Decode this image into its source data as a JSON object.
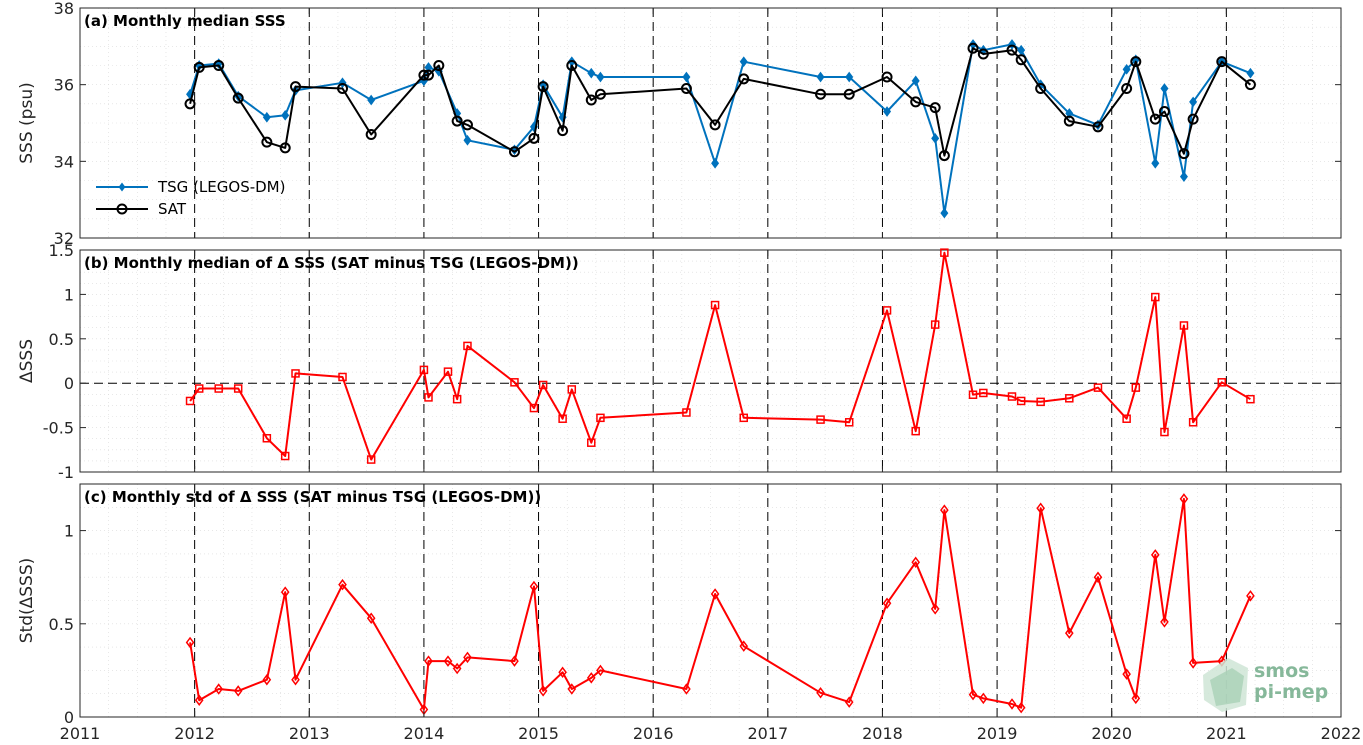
{
  "chart_data": [
    {
      "type": "line",
      "title": "(a) Monthly median SSS",
      "ylabel": "SSS (psu)",
      "xlim": [
        2011,
        2022
      ],
      "ylim": [
        32,
        38
      ],
      "yticks": [
        "32",
        "34",
        "36",
        "38"
      ],
      "grid": true,
      "legend": "left",
      "series": [
        {
          "name": "TSG (LEGOS-DM)",
          "color": "#0072bd",
          "marker": "diamond",
          "x": [
            2011.96,
            2012.04,
            2012.21,
            2012.38,
            2012.63,
            2012.79,
            2012.88,
            2013.29,
            2013.54,
            2014.0,
            2014.04,
            2014.13,
            2014.29,
            2014.38,
            2014.79,
            2014.96,
            2015.04,
            2015.21,
            2015.29,
            2015.46,
            2015.54,
            2016.29,
            2016.54,
            2016.79,
            2017.46,
            2017.71,
            2018.04,
            2018.29,
            2018.46,
            2018.54,
            2018.79,
            2018.88,
            2019.13,
            2019.21,
            2019.38,
            2019.63,
            2019.88,
            2020.13,
            2020.21,
            2020.38,
            2020.46,
            2020.63,
            2020.71,
            2020.96,
            2021.21
          ],
          "values": [
            35.75,
            36.5,
            36.55,
            35.7,
            35.15,
            35.2,
            35.85,
            36.05,
            35.6,
            36.1,
            36.45,
            36.35,
            35.25,
            34.55,
            34.3,
            34.9,
            36.0,
            35.15,
            36.6,
            36.3,
            36.2,
            36.2,
            33.95,
            36.6,
            36.2,
            36.2,
            35.3,
            36.1,
            34.6,
            32.65,
            37.05,
            36.9,
            37.05,
            36.9,
            36.0,
            35.25,
            34.95,
            36.4,
            36.65,
            33.95,
            35.9,
            33.6,
            35.55,
            36.6,
            36.3
          ]
        },
        {
          "name": "SAT",
          "color": "#000000",
          "marker": "circle",
          "x": [
            2011.96,
            2012.04,
            2012.21,
            2012.38,
            2012.63,
            2012.79,
            2012.88,
            2013.29,
            2013.54,
            2014.0,
            2014.04,
            2014.13,
            2014.29,
            2014.38,
            2014.79,
            2014.96,
            2015.04,
            2015.21,
            2015.29,
            2015.46,
            2015.54,
            2016.29,
            2016.54,
            2016.79,
            2017.46,
            2017.71,
            2018.04,
            2018.29,
            2018.46,
            2018.54,
            2018.79,
            2018.88,
            2019.13,
            2019.21,
            2019.38,
            2019.63,
            2019.88,
            2020.13,
            2020.21,
            2020.38,
            2020.46,
            2020.63,
            2020.71,
            2020.96,
            2021.21
          ],
          "values": [
            35.5,
            36.45,
            36.5,
            35.65,
            34.5,
            34.35,
            35.95,
            35.9,
            34.7,
            36.25,
            36.25,
            36.5,
            35.05,
            34.95,
            34.25,
            34.6,
            35.95,
            34.8,
            36.5,
            35.6,
            35.75,
            35.9,
            34.95,
            36.15,
            35.75,
            35.75,
            36.2,
            35.55,
            35.4,
            34.15,
            36.95,
            36.8,
            36.9,
            36.65,
            35.9,
            35.05,
            34.9,
            35.9,
            36.6,
            35.1,
            35.3,
            34.2,
            35.1,
            36.6,
            36.0
          ]
        }
      ]
    },
    {
      "type": "line",
      "title": "(b) Monthly median of Δ SSS (SAT minus TSG (LEGOS-DM))",
      "ylabel": "ΔSSS",
      "xlim": [
        2011,
        2022
      ],
      "ylim": [
        -1,
        1.5
      ],
      "yticks": [
        "-1",
        "-0.5",
        "0",
        "0.5",
        "1",
        "1.5"
      ],
      "grid": true,
      "series": [
        {
          "color": "#ff0000",
          "marker": "square",
          "x": [
            2011.96,
            2012.04,
            2012.21,
            2012.38,
            2012.63,
            2012.79,
            2012.88,
            2013.29,
            2013.54,
            2014.0,
            2014.04,
            2014.21,
            2014.29,
            2014.38,
            2014.79,
            2014.96,
            2015.04,
            2015.21,
            2015.29,
            2015.46,
            2015.54,
            2016.29,
            2016.54,
            2016.79,
            2017.46,
            2017.71,
            2018.04,
            2018.29,
            2018.46,
            2018.54,
            2018.79,
            2018.88,
            2019.13,
            2019.21,
            2019.38,
            2019.63,
            2019.88,
            2020.13,
            2020.21,
            2020.38,
            2020.46,
            2020.63,
            2020.71,
            2020.96,
            2021.21
          ],
          "values": [
            -0.2,
            -0.06,
            -0.06,
            -0.06,
            -0.62,
            -0.82,
            0.11,
            0.07,
            -0.86,
            0.15,
            -0.16,
            0.13,
            -0.18,
            0.42,
            0.01,
            -0.28,
            -0.02,
            -0.4,
            -0.07,
            -0.67,
            -0.39,
            -0.33,
            0.88,
            -0.39,
            -0.41,
            -0.44,
            0.82,
            -0.54,
            0.66,
            1.47,
            -0.13,
            -0.11,
            -0.15,
            -0.2,
            -0.21,
            -0.17,
            -0.05,
            -0.4,
            -0.05,
            0.97,
            -0.55,
            0.65,
            -0.44,
            0.01,
            -0.18
          ]
        }
      ]
    },
    {
      "type": "line",
      "title": "(c) Monthly std of Δ SSS (SAT minus TSG (LEGOS-DM))",
      "ylabel": "Std(ΔSSS)",
      "xlim": [
        2011,
        2022
      ],
      "ylim": [
        0,
        1.25
      ],
      "yticks": [
        "0",
        "0.5",
        "1"
      ],
      "xticks": [
        "2011",
        "2012",
        "2013",
        "2014",
        "2015",
        "2016",
        "2017",
        "2018",
        "2019",
        "2020",
        "2021",
        "2022"
      ],
      "grid": true,
      "series": [
        {
          "color": "#ff0000",
          "marker": "diamond",
          "x": [
            2011.96,
            2012.04,
            2012.21,
            2012.38,
            2012.63,
            2012.79,
            2012.88,
            2013.29,
            2013.54,
            2014.0,
            2014.04,
            2014.21,
            2014.29,
            2014.38,
            2014.79,
            2014.96,
            2015.04,
            2015.21,
            2015.29,
            2015.46,
            2015.54,
            2016.29,
            2016.54,
            2016.79,
            2017.46,
            2017.71,
            2018.04,
            2018.29,
            2018.46,
            2018.54,
            2018.79,
            2018.88,
            2019.13,
            2019.21,
            2019.38,
            2019.63,
            2019.88,
            2020.13,
            2020.21,
            2020.38,
            2020.46,
            2020.63,
            2020.71,
            2020.96,
            2021.21
          ],
          "values": [
            0.4,
            0.09,
            0.15,
            0.14,
            0.2,
            0.67,
            0.2,
            0.71,
            0.53,
            0.04,
            0.3,
            0.3,
            0.26,
            0.32,
            0.3,
            0.7,
            0.14,
            0.24,
            0.15,
            0.21,
            0.25,
            0.15,
            0.66,
            0.38,
            0.13,
            0.08,
            0.61,
            0.83,
            0.58,
            1.11,
            0.12,
            0.1,
            0.07,
            0.05,
            1.12,
            0.45,
            0.75,
            0.23,
            0.1,
            0.87,
            0.51,
            1.17,
            0.29,
            0.3,
            0.65
          ]
        }
      ]
    }
  ],
  "watermark": {
    "line1": "smos",
    "line2": "pi-mep",
    "color": "#86b89a"
  }
}
